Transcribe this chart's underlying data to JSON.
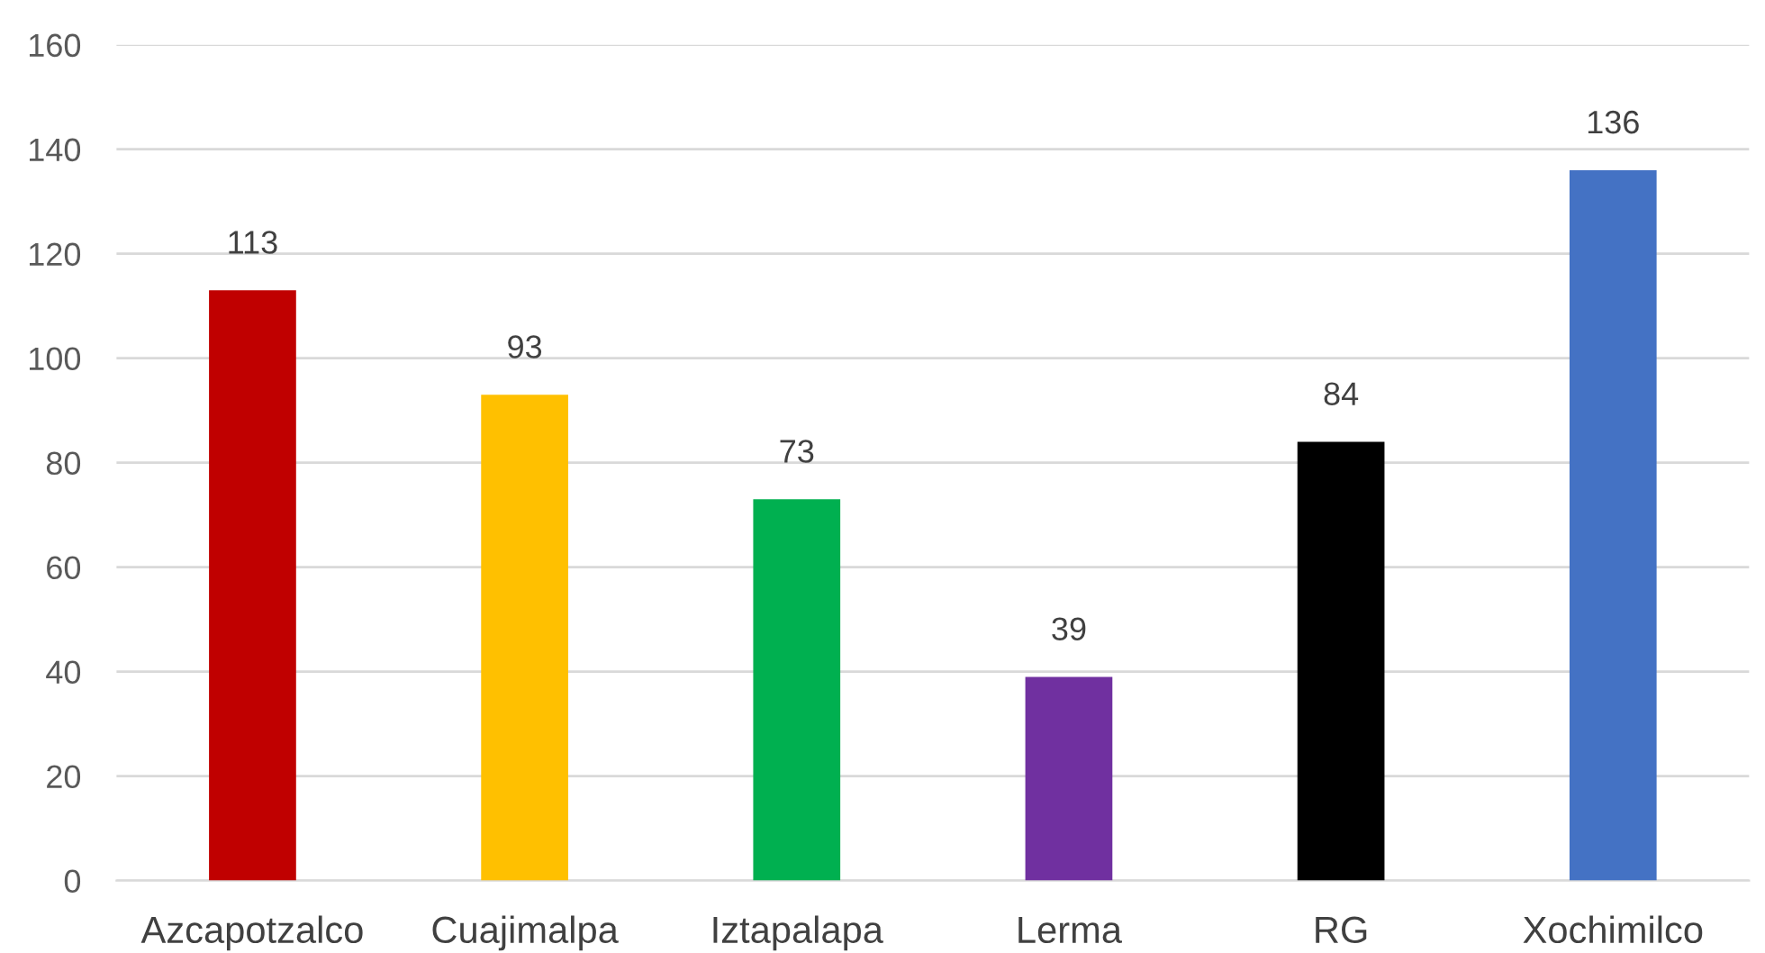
{
  "chart_data": {
    "type": "bar",
    "categories": [
      "Azcapotzalco",
      "Cuajimalpa",
      "Iztapalapa",
      "Lerma",
      "RG",
      "Xochimilco"
    ],
    "values": [
      113,
      93,
      73,
      39,
      84,
      136
    ],
    "colors": [
      "#c00000",
      "#ffc000",
      "#00b050",
      "#7030a0",
      "#000000",
      "#4472c4"
    ],
    "ylim": [
      0,
      160
    ],
    "yticks": [
      0,
      20,
      40,
      60,
      80,
      100,
      120,
      140,
      160
    ],
    "grid": "y",
    "data_labels": true
  }
}
